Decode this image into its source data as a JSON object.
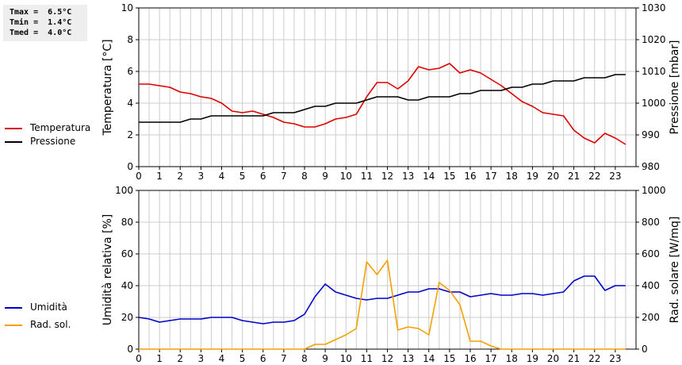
{
  "stats": {
    "tmax": "Tmax =  6.5°C",
    "tmin": "Tmin =  1.4°C",
    "tmed": "Tmed =  4.0°C"
  },
  "colors": {
    "temperature": "#dd0000",
    "pressure": "#000000",
    "humidity": "#0000cc",
    "radiation": "#f5a000",
    "grid": "#cccccc"
  },
  "legend_top": [
    {
      "label": "Temperatura",
      "color": "#dd0000"
    },
    {
      "label": "Pressione",
      "color": "#000000"
    }
  ],
  "legend_bottom": [
    {
      "label": "Umidità",
      "color": "#0000cc"
    },
    {
      "label": "Rad. sol.",
      "color": "#f5a000"
    }
  ],
  "chart_data": [
    {
      "type": "line",
      "xlabel": "",
      "ylabel": "Temperatura [°C]",
      "ylabel_right": "Pressione [mbar]",
      "xlim": [
        0,
        24
      ],
      "ylim": [
        0,
        10
      ],
      "ylim_right": [
        980,
        1030
      ],
      "xticks": [
        "0",
        "1",
        "2",
        "3",
        "4",
        "5",
        "6",
        "7",
        "8",
        "9",
        "10",
        "11",
        "12",
        "13",
        "14",
        "15",
        "16",
        "17",
        "18",
        "19",
        "20",
        "21",
        "22",
        "23"
      ],
      "yticks": [
        "0",
        "2",
        "4",
        "6",
        "8",
        "10"
      ],
      "yticks_right": [
        "980",
        "990",
        "1000",
        "1010",
        "1020",
        "1030"
      ],
      "grid": true,
      "series": [
        {
          "name": "Temperatura",
          "axis": "left",
          "x": [
            0,
            0.5,
            1,
            1.5,
            2,
            2.5,
            3,
            3.5,
            4,
            4.5,
            5,
            5.5,
            6,
            6.5,
            7,
            7.5,
            8,
            8.5,
            9,
            9.5,
            10,
            10.5,
            11,
            11.5,
            12,
            12.5,
            13,
            13.5,
            14,
            14.5,
            15,
            15.5,
            16,
            16.5,
            17,
            17.5,
            18,
            18.5,
            19,
            19.5,
            20,
            20.5,
            21,
            21.5,
            22,
            22.5,
            23,
            23.5
          ],
          "values": [
            5.2,
            5.2,
            5.1,
            5.0,
            4.7,
            4.6,
            4.4,
            4.3,
            4.0,
            3.5,
            3.4,
            3.5,
            3.3,
            3.1,
            2.8,
            2.7,
            2.5,
            2.5,
            2.7,
            3.0,
            3.1,
            3.3,
            4.4,
            5.3,
            5.3,
            4.9,
            5.4,
            6.3,
            6.1,
            6.2,
            6.5,
            5.9,
            6.1,
            5.9,
            5.5,
            5.1,
            4.6,
            4.1,
            3.8,
            3.4,
            3.3,
            3.2,
            2.3,
            1.8,
            1.5,
            2.1,
            1.8,
            1.4
          ]
        },
        {
          "name": "Pressione",
          "axis": "right",
          "x": [
            0,
            0.5,
            1,
            1.5,
            2,
            2.5,
            3,
            3.5,
            4,
            4.5,
            5,
            5.5,
            6,
            6.5,
            7,
            7.5,
            8,
            8.5,
            9,
            9.5,
            10,
            10.5,
            11,
            11.5,
            12,
            12.5,
            13,
            13.5,
            14,
            14.5,
            15,
            15.5,
            16,
            16.5,
            17,
            17.5,
            18,
            18.5,
            19,
            19.5,
            20,
            20.5,
            21,
            21.5,
            22,
            22.5,
            23,
            23.5
          ],
          "values": [
            994,
            994,
            994,
            994,
            994,
            995,
            995,
            996,
            996,
            996,
            996,
            996,
            996,
            997,
            997,
            997,
            998,
            999,
            999,
            1000,
            1000,
            1000,
            1001,
            1002,
            1002,
            1002,
            1001,
            1001,
            1002,
            1002,
            1002,
            1003,
            1003,
            1004,
            1004,
            1004,
            1005,
            1005,
            1006,
            1006,
            1007,
            1007,
            1007,
            1008,
            1008,
            1008,
            1009,
            1009
          ]
        }
      ]
    },
    {
      "type": "line",
      "xlabel": "",
      "ylabel": "Umidità relativa [%]",
      "ylabel_right": "Rad. solare [W/mq]",
      "xlim": [
        0,
        24
      ],
      "ylim": [
        0,
        100
      ],
      "ylim_right": [
        0,
        1000
      ],
      "xticks": [
        "0",
        "1",
        "2",
        "3",
        "4",
        "5",
        "6",
        "7",
        "8",
        "9",
        "10",
        "11",
        "12",
        "13",
        "14",
        "15",
        "16",
        "17",
        "18",
        "19",
        "20",
        "21",
        "22",
        "23"
      ],
      "yticks": [
        "0",
        "20",
        "40",
        "60",
        "80",
        "100"
      ],
      "yticks_right": [
        "0",
        "200",
        "400",
        "600",
        "800",
        "1000"
      ],
      "grid": true,
      "series": [
        {
          "name": "Umidità",
          "axis": "left",
          "x": [
            0,
            0.5,
            1,
            1.5,
            2,
            2.5,
            3,
            3.5,
            4,
            4.5,
            5,
            5.5,
            6,
            6.5,
            7,
            7.5,
            8,
            8.5,
            9,
            9.5,
            10,
            10.5,
            11,
            11.5,
            12,
            12.5,
            13,
            13.5,
            14,
            14.5,
            15,
            15.5,
            16,
            16.5,
            17,
            17.5,
            18,
            18.5,
            19,
            19.5,
            20,
            20.5,
            21,
            21.5,
            22,
            22.5,
            23,
            23.5
          ],
          "values": [
            20,
            19,
            17,
            18,
            19,
            19,
            19,
            20,
            20,
            20,
            18,
            17,
            16,
            17,
            17,
            18,
            22,
            33,
            41,
            36,
            34,
            32,
            31,
            32,
            32,
            34,
            36,
            36,
            38,
            38,
            36,
            36,
            33,
            34,
            35,
            34,
            34,
            35,
            35,
            34,
            35,
            36,
            43,
            46,
            46,
            37,
            40,
            40
          ]
        },
        {
          "name": "Rad. sol.",
          "axis": "right",
          "x": [
            0,
            0.5,
            1,
            1.5,
            2,
            2.5,
            3,
            3.5,
            4,
            4.5,
            5,
            5.5,
            6,
            6.5,
            7,
            7.5,
            8,
            8.5,
            9,
            9.5,
            10,
            10.5,
            11,
            11.5,
            12,
            12.5,
            13,
            13.5,
            14,
            14.5,
            15,
            15.5,
            16,
            16.5,
            17,
            17.5,
            18,
            18.5,
            19,
            19.5,
            20,
            20.5,
            21,
            21.5,
            22,
            22.5,
            23,
            23.5
          ],
          "values": [
            0,
            0,
            0,
            0,
            0,
            0,
            0,
            0,
            0,
            0,
            0,
            0,
            0,
            0,
            0,
            0,
            0,
            30,
            30,
            60,
            90,
            130,
            550,
            470,
            560,
            120,
            140,
            130,
            90,
            420,
            370,
            280,
            50,
            50,
            20,
            0,
            0,
            0,
            0,
            0,
            0,
            0,
            0,
            0,
            0,
            0,
            0,
            0
          ]
        }
      ]
    }
  ]
}
